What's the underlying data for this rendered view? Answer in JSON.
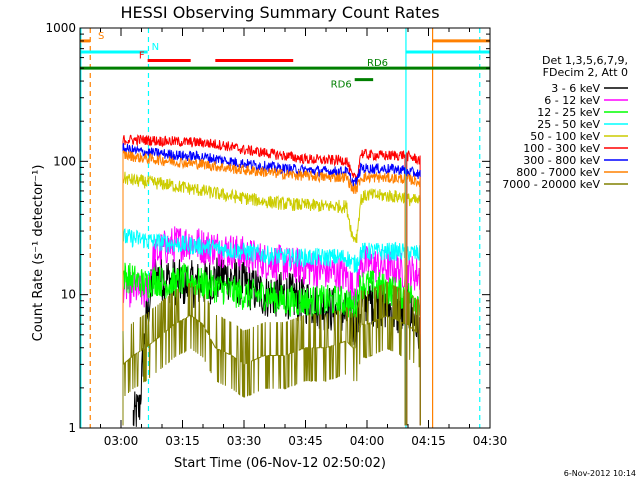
{
  "chart_data": {
    "type": "line",
    "title": "HESSI Observing Summary Count Rates",
    "xlabel": "Start Time (06-Nov-12 02:50:02)",
    "ylabel": "Count Rate (s⁻¹ detector⁻¹)",
    "footer_date": "6-Nov-2012 10:14",
    "y_scale": "log",
    "ylim": [
      1,
      1000
    ],
    "y_ticks": [
      {
        "v": 1,
        "label": "1"
      },
      {
        "v": 10,
        "label": "10"
      },
      {
        "v": 100,
        "label": "100"
      },
      {
        "v": 1000,
        "label": "1000"
      }
    ],
    "xlim_min": [
      170,
      270
    ],
    "x_ticks": [
      {
        "m": 180,
        "label": "03:00"
      },
      {
        "m": 195,
        "label": "03:15"
      },
      {
        "m": 210,
        "label": "03:30"
      },
      {
        "m": 225,
        "label": "03:45"
      },
      {
        "m": 240,
        "label": "04:00"
      },
      {
        "m": 255,
        "label": "04:15"
      },
      {
        "m": 270,
        "label": "04:30"
      }
    ],
    "legend": {
      "header": [
        "Det 1,3,5,6,7,9,",
        "FDecim 2, Att 0"
      ],
      "placement": "right"
    },
    "flag_lines": [
      {
        "label": "S",
        "color": "#ff8000",
        "y": 800,
        "segments": [
          [
            170,
            172.5
          ],
          [
            256,
            270
          ]
        ]
      },
      {
        "label": "N",
        "color": "#00ffff",
        "y": 660,
        "segments": [
          [
            170,
            186.5
          ],
          [
            249.5,
            270
          ]
        ]
      },
      {
        "label": "F",
        "color": "#ff0000",
        "y": 570,
        "segments": [
          [
            186.5,
            197
          ]
        ],
        "label_side": "left"
      },
      {
        "label": "",
        "color": "#ff0000",
        "y": 570,
        "segments": [
          [
            203,
            222
          ]
        ]
      },
      {
        "label": "RD6",
        "color": "#007f00",
        "y": 500,
        "segments": [
          [
            170,
            270
          ]
        ],
        "label_x": 240
      },
      {
        "label": "RD6",
        "color": "#007f00",
        "y": 410,
        "segments": [
          [
            237,
            241.5
          ]
        ],
        "label_side": "left"
      }
    ],
    "vlines": [
      {
        "x": 172.5,
        "color": "#ff8000",
        "dash": true
      },
      {
        "x": 186.7,
        "color": "#00ffff",
        "dash": true
      },
      {
        "x": 249.5,
        "color": "#00ffff",
        "dash": false
      },
      {
        "x": 256,
        "color": "#ff8000",
        "dash": false
      },
      {
        "x": 267.5,
        "color": "#00ffff",
        "dash": true
      },
      {
        "x": 170.2,
        "color": "#00ffff",
        "dash": false
      }
    ],
    "gaps": [
      [
        186.8,
        187.2
      ]
    ],
    "series": [
      {
        "name": "3 - 6 keV",
        "color": "#000000",
        "noise": 0.18,
        "keys": [
          [
            183,
            1.2
          ],
          [
            184.5,
            1.4
          ],
          [
            186,
            6
          ],
          [
            188,
            14
          ],
          [
            195,
            12
          ],
          [
            200,
            12
          ],
          [
            205,
            14
          ],
          [
            210,
            12
          ],
          [
            215,
            10
          ],
          [
            220,
            10
          ],
          [
            225,
            9
          ],
          [
            230,
            8
          ],
          [
            235,
            7
          ],
          [
            236.5,
            6
          ],
          [
            237.5,
            6
          ],
          [
            238.5,
            8
          ],
          [
            240,
            9
          ],
          [
            245,
            8
          ],
          [
            248,
            7
          ],
          [
            249.3,
            7
          ]
        ],
        "late": [
          [
            249.7,
            8
          ],
          [
            252,
            6
          ],
          [
            253,
            5
          ]
        ]
      },
      {
        "name": "6 - 12 keV",
        "color": "#ff00ff",
        "noise": 0.14,
        "keys": [
          [
            180.5,
            12
          ],
          [
            182,
            11
          ],
          [
            184,
            11
          ],
          [
            186,
            10
          ],
          [
            188,
            19
          ],
          [
            190,
            22
          ],
          [
            193,
            24
          ],
          [
            197,
            25
          ],
          [
            200,
            23
          ],
          [
            205,
            22
          ],
          [
            210,
            20
          ],
          [
            215,
            18
          ],
          [
            220,
            17
          ],
          [
            225,
            16
          ],
          [
            230,
            15
          ],
          [
            235,
            14
          ],
          [
            236.5,
            11
          ],
          [
            237.5,
            11
          ],
          [
            238.5,
            18
          ],
          [
            240,
            17
          ],
          [
            245,
            16
          ],
          [
            249.3,
            15
          ]
        ],
        "late": [
          [
            249.7,
            15
          ],
          [
            253,
            14
          ]
        ]
      },
      {
        "name": "12 - 25 keV",
        "color": "#00ff00",
        "noise": 0.12,
        "keys": [
          [
            180.5,
            14
          ],
          [
            183,
            13
          ],
          [
            186,
            12
          ],
          [
            188,
            13
          ],
          [
            192,
            12
          ],
          [
            196,
            13
          ],
          [
            200,
            12
          ],
          [
            205,
            11
          ],
          [
            210,
            10
          ],
          [
            215,
            10
          ],
          [
            220,
            9
          ],
          [
            225,
            9
          ],
          [
            230,
            9
          ],
          [
            235,
            9
          ],
          [
            236.5,
            8
          ],
          [
            237.5,
            9
          ],
          [
            238.5,
            12
          ],
          [
            240,
            12
          ],
          [
            245,
            11
          ],
          [
            249.3,
            10
          ]
        ],
        "late": [
          [
            249.7,
            10
          ],
          [
            253,
            9
          ]
        ]
      },
      {
        "name": "25 - 50 keV",
        "color": "#00ffff",
        "noise": 0.07,
        "keys": [
          [
            180.5,
            27
          ],
          [
            185,
            26
          ],
          [
            188,
            25
          ],
          [
            193,
            24
          ],
          [
            200,
            23
          ],
          [
            205,
            22
          ],
          [
            210,
            21
          ],
          [
            215,
            20
          ],
          [
            220,
            19
          ],
          [
            225,
            19
          ],
          [
            230,
            19
          ],
          [
            235,
            19
          ],
          [
            236.5,
            17
          ],
          [
            237.5,
            17
          ],
          [
            238.5,
            21
          ],
          [
            240,
            21
          ],
          [
            245,
            21
          ],
          [
            249.3,
            21
          ]
        ],
        "late": [
          [
            249.7,
            21
          ],
          [
            253,
            20
          ]
        ]
      },
      {
        "name": "50 - 100 keV",
        "color": "#cccc00",
        "noise": 0.05,
        "keys": [
          [
            180.5,
            75
          ],
          [
            183,
            72
          ],
          [
            186,
            70
          ],
          [
            190,
            68
          ],
          [
            195,
            64
          ],
          [
            200,
            60
          ],
          [
            205,
            56
          ],
          [
            210,
            53
          ],
          [
            215,
            50
          ],
          [
            220,
            48
          ],
          [
            225,
            47
          ],
          [
            230,
            46
          ],
          [
            235,
            46
          ],
          [
            236.5,
            27
          ],
          [
            237.5,
            27
          ],
          [
            238.5,
            52
          ],
          [
            240,
            56
          ],
          [
            245,
            55
          ],
          [
            249.3,
            54
          ]
        ],
        "late": [
          [
            249.7,
            52
          ],
          [
            253,
            50
          ]
        ]
      },
      {
        "name": "100 - 300 keV",
        "color": "#ff0000",
        "noise": 0.04,
        "keys": [
          [
            180.5,
            145
          ],
          [
            185,
            145
          ],
          [
            190,
            142
          ],
          [
            195,
            140
          ],
          [
            200,
            138
          ],
          [
            205,
            132
          ],
          [
            210,
            122
          ],
          [
            215,
            116
          ],
          [
            220,
            110
          ],
          [
            225,
            104
          ],
          [
            230,
            102
          ],
          [
            235,
            102
          ],
          [
            236.5,
            75
          ],
          [
            237.5,
            75
          ],
          [
            238.5,
            115
          ],
          [
            240,
            112
          ],
          [
            245,
            110
          ],
          [
            249.3,
            112
          ]
        ],
        "late": [
          [
            249.7,
            110
          ],
          [
            253,
            102
          ]
        ]
      },
      {
        "name": "300 - 800 keV",
        "color": "#0000ff",
        "noise": 0.04,
        "keys": [
          [
            180.5,
            125
          ],
          [
            185,
            118
          ],
          [
            190,
            114
          ],
          [
            195,
            110
          ],
          [
            200,
            108
          ],
          [
            205,
            102
          ],
          [
            210,
            96
          ],
          [
            215,
            92
          ],
          [
            220,
            88
          ],
          [
            225,
            86
          ],
          [
            230,
            84
          ],
          [
            235,
            84
          ],
          [
            236.5,
            70
          ],
          [
            237.5,
            70
          ],
          [
            238.5,
            90
          ],
          [
            240,
            88
          ],
          [
            245,
            88
          ],
          [
            249.3,
            86
          ]
        ],
        "late": [
          [
            249.7,
            84
          ],
          [
            253,
            80
          ]
        ]
      },
      {
        "name": "800 - 7000 keV",
        "color": "#ff8000",
        "noise": 0.04,
        "keys": [
          [
            180.5,
            112
          ],
          [
            185,
            106
          ],
          [
            190,
            102
          ],
          [
            195,
            98
          ],
          [
            200,
            95
          ],
          [
            205,
            90
          ],
          [
            210,
            86
          ],
          [
            215,
            83
          ],
          [
            220,
            80
          ],
          [
            225,
            78
          ],
          [
            230,
            76
          ],
          [
            235,
            76
          ],
          [
            236.5,
            62
          ],
          [
            237.5,
            62
          ],
          [
            238.5,
            76
          ],
          [
            240,
            76
          ],
          [
            245,
            75
          ],
          [
            249.3,
            74
          ]
        ],
        "late": [
          [
            249.7,
            74
          ],
          [
            253,
            70
          ]
        ]
      },
      {
        "name": "7000 - 20000 keV",
        "color": "#808000",
        "noise": 0.22,
        "step": true,
        "keys": [
          [
            180.5,
            3
          ],
          [
            183,
            3.5
          ],
          [
            186,
            4
          ],
          [
            190,
            5
          ],
          [
            193,
            6
          ],
          [
            197,
            7
          ],
          [
            200,
            6
          ],
          [
            203,
            4
          ],
          [
            207,
            3.5
          ],
          [
            210,
            3
          ],
          [
            215,
            3.5
          ],
          [
            220,
            3.5
          ],
          [
            225,
            4
          ],
          [
            230,
            4
          ],
          [
            235,
            4.5
          ],
          [
            236.5,
            4
          ],
          [
            237.5,
            4
          ],
          [
            238.5,
            6
          ],
          [
            240,
            6
          ],
          [
            245,
            7
          ],
          [
            249.3,
            6
          ]
        ],
        "late": [
          [
            249.7,
            6
          ],
          [
            253,
            5
          ]
        ]
      }
    ]
  }
}
